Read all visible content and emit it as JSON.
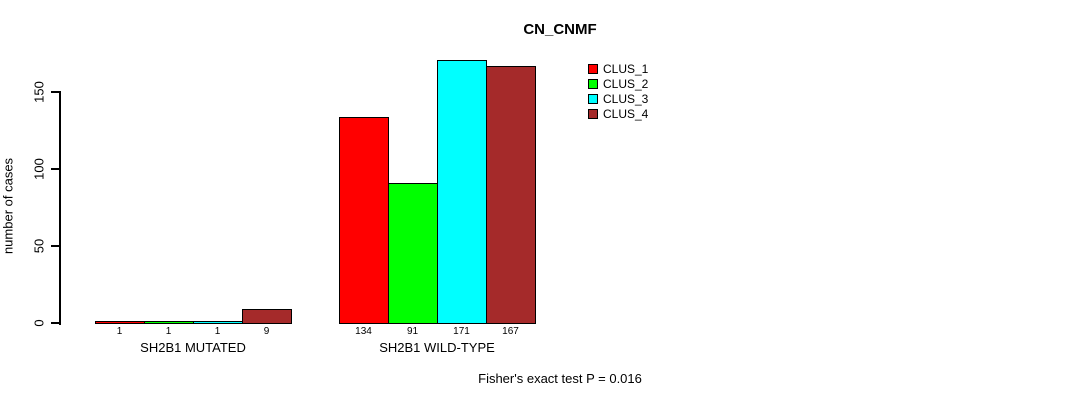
{
  "chart_data": {
    "type": "bar",
    "title": "CN_CNMF",
    "xlabel": "",
    "ylabel": "number of cases",
    "categories": [
      "SH2B1 MUTATED",
      "SH2B1 WILD-TYPE"
    ],
    "series": [
      {
        "name": "CLUS_1",
        "color": "#ff0000",
        "values": [
          1,
          134
        ]
      },
      {
        "name": "CLUS_2",
        "color": "#00ff00",
        "values": [
          1,
          91
        ]
      },
      {
        "name": "CLUS_3",
        "color": "#00ffff",
        "values": [
          1,
          171
        ]
      },
      {
        "name": "CLUS_4",
        "color": "#a52a2a",
        "values": [
          9,
          167
        ]
      }
    ],
    "bar_value_labels": [
      [
        "1",
        "1",
        "1",
        "9"
      ],
      [
        "134",
        "91",
        "171",
        "167"
      ]
    ],
    "yticks": [
      0,
      50,
      100,
      150
    ],
    "ylim": [
      0,
      173
    ],
    "grid": false,
    "legend_position": "top-right",
    "legend_entries": [
      "CLUS_1",
      "CLUS_2",
      "CLUS_3",
      "CLUS_4"
    ],
    "annotation": "Fisher's exact test P = 0.016",
    "axis_color": "#000000",
    "background_color": "#ffffff"
  }
}
